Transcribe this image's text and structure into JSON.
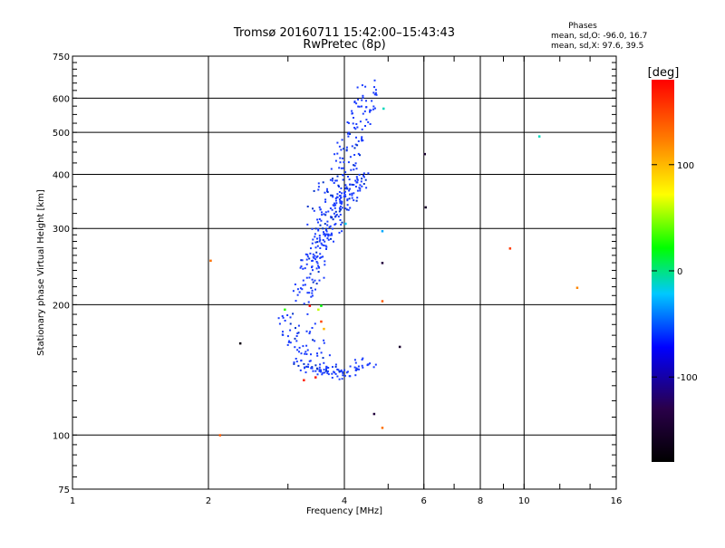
{
  "chart_data": {
    "type": "scatter",
    "title": "Tromsø 20160711 15:42:00–15:43:43",
    "subtitle": "RwPretec (8p)",
    "xlabel": "Frequency [MHz]",
    "ylabel": "Stationary phase Virtual Height [km]",
    "xscale": "log",
    "yscale": "log",
    "xlim": [
      1,
      16
    ],
    "ylim": [
      75,
      750
    ],
    "xticks": [
      1,
      2,
      4,
      6,
      8,
      10,
      16
    ],
    "xtick_labels": [
      "1",
      "2",
      "4",
      "6",
      "8",
      "10",
      "16"
    ],
    "yticks": [
      75,
      100,
      200,
      300,
      400,
      500,
      600,
      750
    ],
    "ytick_labels": [
      "75",
      "100",
      "200",
      "300",
      "400",
      "500",
      "600",
      "750"
    ],
    "grid": true,
    "phase_stats": {
      "heading": "Phases",
      "line_o": "mean, sd,O: -96.0, 16.7",
      "line_x": "mean, sd,X:  97.6, 39.5"
    },
    "colorbar": {
      "label": "[deg]",
      "ticks": [
        "100",
        "0",
        "-100"
      ],
      "tick_values": [
        100,
        0,
        -100
      ],
      "range": [
        -180,
        180
      ]
    },
    "colors": {
      "trace": "#1a3cff",
      "axis": "#000000"
    },
    "traces": [
      {
        "from": [
          3.2,
          205
        ],
        "to": [
          4.55,
          640
        ],
        "n": 230,
        "jit_f": 0.06,
        "jit_h": 0.05
      },
      {
        "from": [
          3.6,
          280
        ],
        "to": [
          4.1,
          360
        ],
        "n": 45,
        "jit_f": 0.05,
        "jit_h": 0.05
      },
      {
        "from": [
          3.95,
          340
        ],
        "to": [
          4.4,
          400
        ],
        "n": 60,
        "jit_f": 0.05,
        "jit_h": 0.04
      },
      {
        "from": [
          3.3,
          240
        ],
        "to": [
          3.52,
          385
        ],
        "n": 22,
        "jit_f": 0.04,
        "jit_h": 0.05
      },
      {
        "from": [
          3.5,
          230
        ],
        "to": [
          3.65,
          300
        ],
        "n": 14,
        "jit_f": 0.03,
        "jit_h": 0.04
      },
      {
        "from": [
          2.95,
          188
        ],
        "to": [
          3.3,
          145
        ],
        "n": 45,
        "jit_f": 0.05,
        "jit_h": 0.03
      },
      {
        "from": [
          3.3,
          145
        ],
        "to": [
          3.95,
          137
        ],
        "n": 55,
        "jit_f": 0.07,
        "jit_h": 0.025
      },
      {
        "from": [
          3.95,
          137
        ],
        "to": [
          4.6,
          148
        ],
        "n": 30,
        "jit_f": 0.07,
        "jit_h": 0.03
      },
      {
        "from": [
          3.3,
          185
        ],
        "to": [
          3.75,
          145
        ],
        "n": 18,
        "jit_f": 0.04,
        "jit_h": 0.03
      }
    ],
    "points": [
      {
        "f": 2.02,
        "h": 253,
        "phase": 130
      },
      {
        "f": 2.12,
        "h": 100,
        "phase": 140
      },
      {
        "f": 2.35,
        "h": 163,
        "phase": -170
      },
      {
        "f": 2.95,
        "h": 195,
        "phase": 30
      },
      {
        "f": 3.35,
        "h": 199,
        "phase": 175
      },
      {
        "f": 3.5,
        "h": 195,
        "phase": 60
      },
      {
        "f": 3.55,
        "h": 183,
        "phase": 150
      },
      {
        "f": 3.6,
        "h": 176,
        "phase": 100
      },
      {
        "f": 3.55,
        "h": 199,
        "phase": 20
      },
      {
        "f": 3.25,
        "h": 134,
        "phase": 165
      },
      {
        "f": 3.45,
        "h": 136,
        "phase": 170
      },
      {
        "f": 4.02,
        "h": 308,
        "phase": -20
      },
      {
        "f": 4.85,
        "h": 296,
        "phase": -30
      },
      {
        "f": 4.85,
        "h": 250,
        "phase": -140
      },
      {
        "f": 4.85,
        "h": 204,
        "phase": 140
      },
      {
        "f": 4.85,
        "h": 104,
        "phase": 130
      },
      {
        "f": 4.88,
        "h": 568,
        "phase": -10
      },
      {
        "f": 4.65,
        "h": 112,
        "phase": -140
      },
      {
        "f": 5.3,
        "h": 160,
        "phase": -150
      },
      {
        "f": 6.02,
        "h": 446,
        "phase": -150
      },
      {
        "f": 6.05,
        "h": 336,
        "phase": -150
      },
      {
        "f": 9.3,
        "h": 270,
        "phase": 155
      },
      {
        "f": 10.8,
        "h": 490,
        "phase": -10
      },
      {
        "f": 13.1,
        "h": 219,
        "phase": 120
      }
    ]
  }
}
